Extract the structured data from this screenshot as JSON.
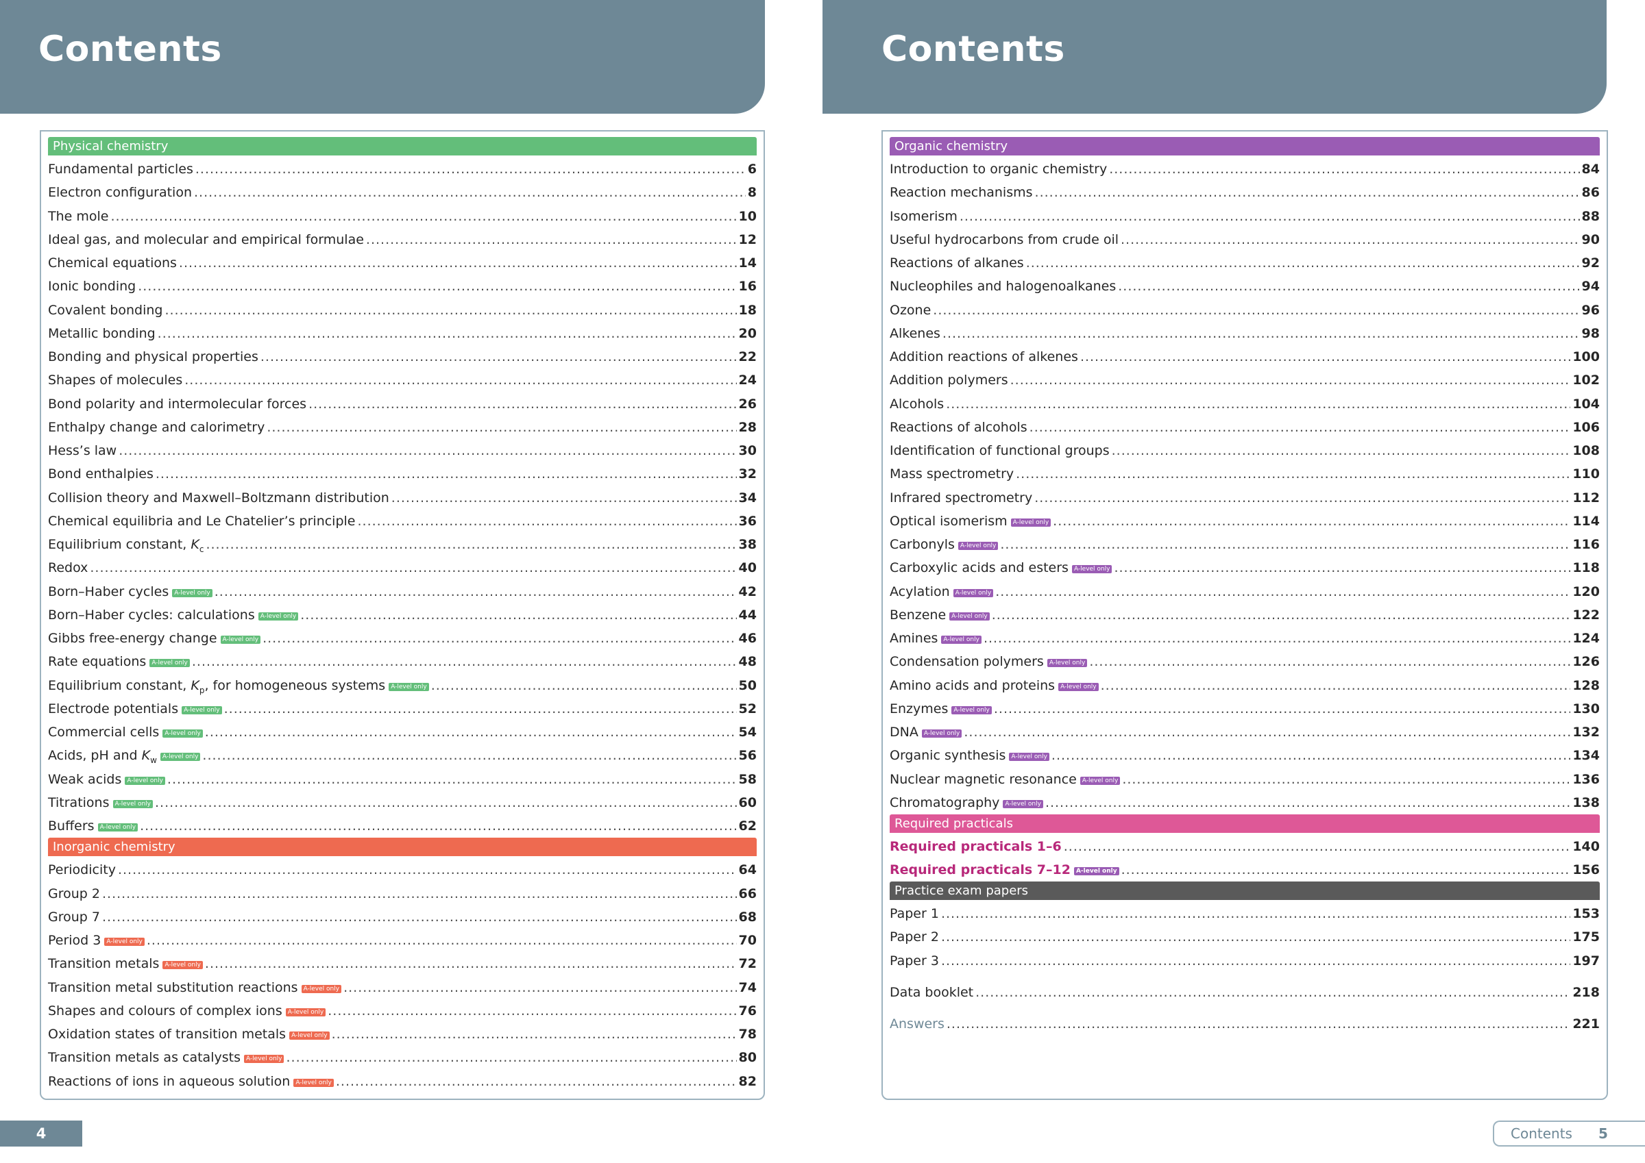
{
  "left_page": {
    "heading": "Contents",
    "page_number": "4",
    "sections": [
      {
        "title": "Physical chemistry",
        "color": "#63be7a",
        "theme": "green",
        "entries": [
          {
            "title": "Fundamental particles",
            "page": "6"
          },
          {
            "title": "Electron configuration",
            "page": "8"
          },
          {
            "title": "The mole",
            "page": "10"
          },
          {
            "title": "Ideal gas, and molecular and empirical formulae",
            "page": "12"
          },
          {
            "title": "Chemical equations",
            "page": "14"
          },
          {
            "title": "Ionic bonding",
            "page": "16"
          },
          {
            "title": "Covalent bonding",
            "page": "18"
          },
          {
            "title": "Metallic bonding",
            "page": "20"
          },
          {
            "title": "Bonding and physical properties",
            "page": "22"
          },
          {
            "title": "Shapes of molecules",
            "page": "24"
          },
          {
            "title": "Bond polarity and intermolecular forces",
            "page": "26"
          },
          {
            "title": "Enthalpy change and calorimetry",
            "page": "28"
          },
          {
            "title": "Hess’s law",
            "page": "30"
          },
          {
            "title": "Bond enthalpies",
            "page": "32"
          },
          {
            "title": "Collision theory and Maxwell–Boltzmann distribution",
            "page": "34"
          },
          {
            "title": "Chemical equilibria and Le Chatelier’s principle",
            "page": "36"
          },
          {
            "title": "Equilibrium constant, K",
            "sub": "c",
            "page": "38"
          },
          {
            "title": "Redox",
            "page": "40"
          },
          {
            "title": "Born–Haber cycles",
            "badge": "A-level only",
            "page": "42"
          },
          {
            "title": "Born–Haber cycles: calculations",
            "badge": "A-level only",
            "page": "44"
          },
          {
            "title": "Gibbs free-energy change",
            "badge": "A-level only",
            "page": "46"
          },
          {
            "title": "Rate equations",
            "badge": "A-level only",
            "page": "48"
          },
          {
            "title": "Equilibrium constant, K",
            "sub": "p",
            "suffix": ", for homogeneous systems",
            "badge": "A-level only",
            "page": "50"
          },
          {
            "title": "Electrode potentials",
            "badge": "A-level only",
            "page": "52"
          },
          {
            "title": "Commercial cells",
            "badge": "A-level only",
            "page": "54"
          },
          {
            "title": "Acids, pH and K",
            "sub": "w",
            "badge": "A-level only",
            "page": "56"
          },
          {
            "title": "Weak acids",
            "badge": "A-level only",
            "page": "58"
          },
          {
            "title": "Titrations",
            "badge": "A-level only",
            "page": "60"
          },
          {
            "title": "Buffers",
            "badge": "A-level only",
            "page": "62"
          }
        ]
      },
      {
        "title": "Inorganic chemistry",
        "color": "#ee6a50",
        "theme": "orange",
        "entries": [
          {
            "title": "Periodicity",
            "page": "64"
          },
          {
            "title": "Group 2",
            "page": "66"
          },
          {
            "title": "Group 7",
            "page": "68"
          },
          {
            "title": "Period 3",
            "badge": "A-level only",
            "page": "70"
          },
          {
            "title": "Transition metals",
            "badge": "A-level only",
            "page": "72"
          },
          {
            "title": "Transition metal substitution reactions",
            "badge": "A-level only",
            "page": "74"
          },
          {
            "title": "Shapes and colours of complex ions",
            "badge": "A-level only",
            "page": "76"
          },
          {
            "title": "Oxidation states of transition metals",
            "badge": "A-level only",
            "page": "78"
          },
          {
            "title": "Transition metals as catalysts",
            "badge": "A-level only",
            "page": "80"
          },
          {
            "title": "Reactions of ions in aqueous solution",
            "badge": "A-level only",
            "page": "82"
          }
        ]
      }
    ]
  },
  "right_page": {
    "heading": "Contents",
    "footer_label": "Contents",
    "page_number": "5",
    "sections": [
      {
        "title": "Organic chemistry",
        "color": "#9a5cb4",
        "theme": "purple",
        "entries": [
          {
            "title": "Introduction to organic chemistry",
            "page": "84"
          },
          {
            "title": "Reaction mechanisms",
            "page": "86"
          },
          {
            "title": "Isomerism",
            "page": "88"
          },
          {
            "title": "Useful hydrocarbons from crude oil",
            "page": "90"
          },
          {
            "title": "Reactions of alkanes",
            "page": "92"
          },
          {
            "title": "Nucleophiles and halogenoalkanes",
            "page": "94"
          },
          {
            "title": "Ozone",
            "page": "96"
          },
          {
            "title": "Alkenes",
            "page": "98"
          },
          {
            "title": "Addition reactions of alkenes",
            "page": "100"
          },
          {
            "title": "Addition polymers",
            "page": "102"
          },
          {
            "title": "Alcohols",
            "page": "104"
          },
          {
            "title": "Reactions of alcohols",
            "page": "106"
          },
          {
            "title": "Identification of functional groups",
            "page": "108"
          },
          {
            "title": "Mass spectrometry",
            "page": "110"
          },
          {
            "title": "Infrared spectrometry",
            "page": "112"
          },
          {
            "title": "Optical isomerism",
            "badge": "A-level only",
            "page": "114"
          },
          {
            "title": "Carbonyls",
            "badge": "A-level only",
            "page": "116"
          },
          {
            "title": "Carboxylic acids and esters",
            "badge": "A-level only",
            "page": "118"
          },
          {
            "title": "Acylation",
            "badge": "A-level only",
            "page": "120"
          },
          {
            "title": "Benzene",
            "badge": "A-level only",
            "page": "122"
          },
          {
            "title": "Amines",
            "badge": "A-level only",
            "page": "124"
          },
          {
            "title": "Condensation polymers",
            "badge": "A-level only",
            "page": "126"
          },
          {
            "title": "Amino acids and proteins",
            "badge": "A-level only",
            "page": "128"
          },
          {
            "title": "Enzymes",
            "badge": "A-level only",
            "page": "130"
          },
          {
            "title": "DNA",
            "badge": "A-level only",
            "page": "132"
          },
          {
            "title": "Organic synthesis",
            "badge": "A-level only",
            "page": "134"
          },
          {
            "title": "Nuclear magnetic resonance",
            "badge": "A-level only",
            "page": "136"
          },
          {
            "title": "Chromatography",
            "badge": "A-level only",
            "page": "138"
          }
        ]
      },
      {
        "title": "Required practicals",
        "color": "#de5897",
        "theme": "pink",
        "style": "practical",
        "entries": [
          {
            "title": "Required practicals 1–6",
            "page": "140"
          },
          {
            "title": "Required practicals 7–12",
            "badge": "A-level only",
            "page": "156"
          }
        ]
      },
      {
        "title": "Practice exam papers",
        "color": "#5a5a5a",
        "theme": "grey",
        "entries": [
          {
            "title": "Paper 1",
            "page": "153"
          },
          {
            "title": "Paper 2",
            "page": "175"
          },
          {
            "title": "Paper 3",
            "page": "197"
          }
        ]
      }
    ],
    "extras": [
      {
        "title": "Data booklet",
        "page": "218"
      },
      {
        "title": "Answers",
        "page": "221",
        "style": "answers"
      }
    ]
  }
}
